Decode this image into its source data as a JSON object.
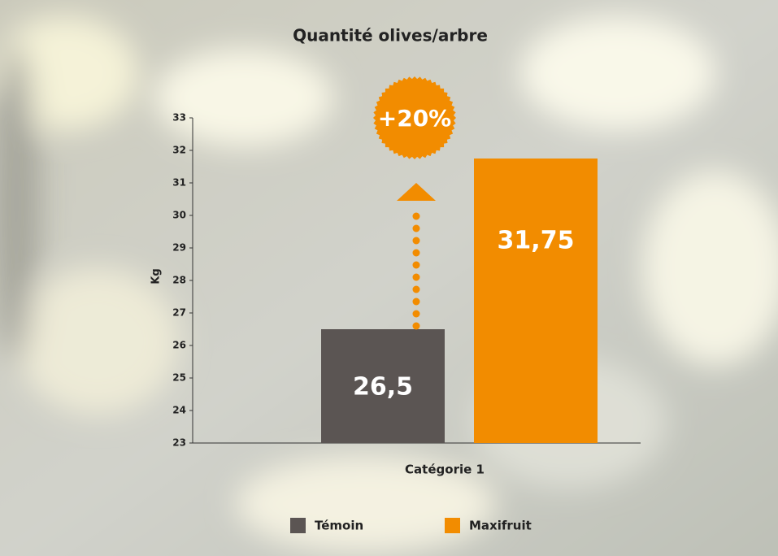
{
  "chart_data": {
    "type": "bar",
    "title": "Quantité olives/arbre",
    "y_label": "Kg",
    "x_label": "Catégorie 1",
    "categories": [
      "Catégorie 1"
    ],
    "series": [
      {
        "name": "Témoin",
        "color": "#5b5553",
        "values": [
          26.5
        ],
        "value_labels": [
          "26,5"
        ]
      },
      {
        "name": "Maxifruit",
        "color": "#f28c00",
        "values": [
          31.75
        ],
        "value_labels": [
          "31,75"
        ]
      }
    ],
    "annotation": "+20%",
    "ylim": [
      23,
      33
    ],
    "yticks": [
      23,
      24,
      25,
      26,
      27,
      28,
      29,
      30,
      31,
      32,
      33
    ]
  }
}
